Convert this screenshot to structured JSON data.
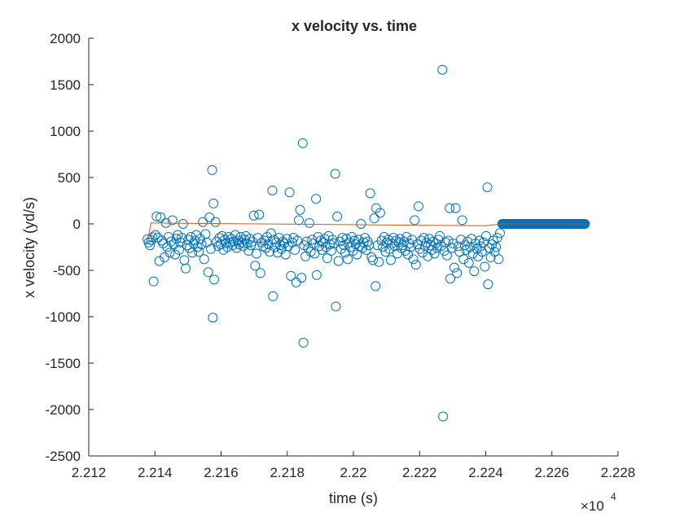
{
  "chart_data": {
    "type": "scatter",
    "title": "x velocity vs. time",
    "xlabel": "time (s)",
    "ylabel": "x velocity (yd/s)",
    "x_exponent_label": "×10",
    "x_exponent_power": "4",
    "xlim": [
      2.212,
      2.228
    ],
    "ylim": [
      -2500,
      2000
    ],
    "x_ticks": [
      2.212,
      2.214,
      2.216,
      2.218,
      2.22,
      2.222,
      2.224,
      2.226,
      2.228
    ],
    "x_tick_labels": [
      "2.212",
      "2.214",
      "2.216",
      "2.218",
      "2.22",
      "2.222",
      "2.224",
      "2.226",
      "2.228"
    ],
    "y_ticks": [
      2000,
      1500,
      1000,
      500,
      0,
      -500,
      -1000,
      -1500,
      -2000,
      -2500
    ],
    "y_tick_labels": [
      "2000",
      "1500",
      "1000",
      "500",
      "0",
      "-500",
      "-1000",
      "-1500",
      "-2000",
      "-2500"
    ],
    "grid": false,
    "marker_color": "#0072BD",
    "line_color": "#D95319",
    "series": [
      {
        "marker": "circle",
        "points": [
          [
            2.21377,
            -165
          ],
          [
            2.21381,
            -200
          ],
          [
            2.21385,
            -230
          ],
          [
            2.21389,
            -175
          ],
          [
            2.21393,
            -145
          ],
          [
            2.21396,
            -620
          ],
          [
            2.21401,
            -120
          ],
          [
            2.21405,
            80
          ],
          [
            2.21409,
            -150
          ],
          [
            2.21413,
            -400
          ],
          [
            2.21417,
            70
          ],
          [
            2.21421,
            -180
          ],
          [
            2.21425,
            -210
          ],
          [
            2.21429,
            -360
          ],
          [
            2.21433,
            10
          ],
          [
            2.21437,
            -250
          ],
          [
            2.21441,
            -140
          ],
          [
            2.21445,
            -310
          ],
          [
            2.21449,
            -190
          ],
          [
            2.21453,
            40
          ],
          [
            2.21457,
            -220
          ],
          [
            2.21461,
            -330
          ],
          [
            2.21465,
            -160
          ],
          [
            2.21469,
            -120
          ],
          [
            2.21473,
            -280
          ],
          [
            2.21477,
            -200
          ],
          [
            2.21481,
            -150
          ],
          [
            2.21485,
            0
          ],
          [
            2.21489,
            -390
          ],
          [
            2.21493,
            -480
          ],
          [
            2.21497,
            -230
          ],
          [
            2.21501,
            -170
          ],
          [
            2.21505,
            -260
          ],
          [
            2.21509,
            -140
          ],
          [
            2.21513,
            -310
          ],
          [
            2.21517,
            -210
          ],
          [
            2.21521,
            -180
          ],
          [
            2.21525,
            -120
          ],
          [
            2.21529,
            -250
          ],
          [
            2.21533,
            -300
          ],
          [
            2.21537,
            -160
          ],
          [
            2.21541,
            -220
          ],
          [
            2.21545,
            20
          ],
          [
            2.21549,
            -380
          ],
          [
            2.21553,
            -110
          ],
          [
            2.21557,
            -200
          ],
          [
            2.21561,
            -520
          ],
          [
            2.21565,
            70
          ],
          [
            2.21569,
            -270
          ],
          [
            2.21573,
            580
          ],
          [
            2.21575,
            -1010
          ],
          [
            2.21577,
            220
          ],
          [
            2.21579,
            -600
          ],
          [
            2.21583,
            20
          ],
          [
            2.21587,
            -190
          ],
          [
            2.21591,
            -240
          ],
          [
            2.21595,
            -150
          ],
          [
            2.21599,
            -220
          ],
          [
            2.21603,
            -130
          ],
          [
            2.21607,
            -280
          ],
          [
            2.21611,
            -170
          ],
          [
            2.21615,
            -210
          ],
          [
            2.21619,
            -250
          ],
          [
            2.21623,
            -140
          ],
          [
            2.21627,
            -200
          ],
          [
            2.21631,
            -160
          ],
          [
            2.21635,
            -230
          ],
          [
            2.21639,
            -190
          ],
          [
            2.21643,
            -120
          ],
          [
            2.21647,
            -260
          ],
          [
            2.21651,
            -180
          ],
          [
            2.21655,
            -220
          ],
          [
            2.21659,
            -140
          ],
          [
            2.21663,
            -200
          ],
          [
            2.21667,
            -240
          ],
          [
            2.21671,
            -170
          ],
          [
            2.21675,
            -130
          ],
          [
            2.21679,
            -210
          ],
          [
            2.21683,
            -290
          ],
          [
            2.21687,
            -160
          ],
          [
            2.21691,
            -230
          ],
          [
            2.21695,
            -190
          ],
          [
            2.21699,
            90
          ],
          [
            2.21703,
            -450
          ],
          [
            2.21707,
            -320
          ],
          [
            2.21711,
            -150
          ],
          [
            2.21715,
            100
          ],
          [
            2.21719,
            -530
          ],
          [
            2.21723,
            -200
          ],
          [
            2.21727,
            -240
          ],
          [
            2.21731,
            -180
          ],
          [
            2.21735,
            -260
          ],
          [
            2.21739,
            -140
          ],
          [
            2.21743,
            -220
          ],
          [
            2.21747,
            -300
          ],
          [
            2.21751,
            -100
          ],
          [
            2.21755,
            360
          ],
          [
            2.21757,
            -780
          ],
          [
            2.21759,
            -170
          ],
          [
            2.21763,
            -250
          ],
          [
            2.21767,
            -200
          ],
          [
            2.21771,
            -310
          ],
          [
            2.21775,
            -150
          ],
          [
            2.21779,
            -230
          ],
          [
            2.21783,
            -270
          ],
          [
            2.21787,
            -190
          ],
          [
            2.21791,
            -210
          ],
          [
            2.21795,
            -330
          ],
          [
            2.21799,
            -160
          ],
          [
            2.21803,
            -240
          ],
          [
            2.21807,
            340
          ],
          [
            2.21811,
            -560
          ],
          [
            2.21815,
            -200
          ],
          [
            2.21819,
            -150
          ],
          [
            2.21823,
            -280
          ],
          [
            2.21827,
            -630
          ],
          [
            2.21831,
            -180
          ],
          [
            2.21835,
            40
          ],
          [
            2.21839,
            150
          ],
          [
            2.21843,
            -580
          ],
          [
            2.21847,
            870
          ],
          [
            2.21849,
            -1280
          ],
          [
            2.21851,
            -230
          ],
          [
            2.21855,
            -350
          ],
          [
            2.21859,
            -190
          ],
          [
            2.21863,
            -260
          ],
          [
            2.21867,
            10
          ],
          [
            2.21871,
            -300
          ],
          [
            2.21875,
            -170
          ],
          [
            2.21879,
            -210
          ],
          [
            2.21883,
            -320
          ],
          [
            2.21887,
            270
          ],
          [
            2.21889,
            -550
          ],
          [
            2.21893,
            -140
          ],
          [
            2.21897,
            -240
          ],
          [
            2.21901,
            -180
          ],
          [
            2.21905,
            -280
          ],
          [
            2.21909,
            -200
          ],
          [
            2.21913,
            -160
          ],
          [
            2.21917,
            -250
          ],
          [
            2.21921,
            -370
          ],
          [
            2.21925,
            -130
          ],
          [
            2.21929,
            -220
          ],
          [
            2.21933,
            -290
          ],
          [
            2.21937,
            -170
          ],
          [
            2.21941,
            -210
          ],
          [
            2.21945,
            540
          ],
          [
            2.21947,
            -890
          ],
          [
            2.21951,
            80
          ],
          [
            2.21955,
            -400
          ],
          [
            2.21959,
            -190
          ],
          [
            2.21963,
            -270
          ],
          [
            2.21967,
            -150
          ],
          [
            2.21971,
            -230
          ],
          [
            2.21975,
            -310
          ],
          [
            2.21979,
            -160
          ],
          [
            2.21983,
            -380
          ],
          [
            2.21987,
            -200
          ],
          [
            2.21991,
            -250
          ],
          [
            2.21995,
            -140
          ],
          [
            2.21999,
            -290
          ],
          [
            2.22003,
            -180
          ],
          [
            2.22007,
            -220
          ],
          [
            2.22011,
            -330
          ],
          [
            2.22015,
            -170
          ],
          [
            2.22019,
            -240
          ],
          [
            2.22023,
            0
          ],
          [
            2.22027,
            -260
          ],
          [
            2.22031,
            -200
          ],
          [
            2.22035,
            -150
          ],
          [
            2.22039,
            -280
          ],
          [
            2.22043,
            -190
          ],
          [
            2.22047,
            -230
          ],
          [
            2.22051,
            330
          ],
          [
            2.22055,
            -360
          ],
          [
            2.22059,
            -390
          ],
          [
            2.22063,
            60
          ],
          [
            2.22067,
            -670
          ],
          [
            2.22069,
            170
          ],
          [
            2.22073,
            -230
          ],
          [
            2.22077,
            -410
          ],
          [
            2.22081,
            120
          ],
          [
            2.22085,
            -180
          ],
          [
            2.22089,
            -250
          ],
          [
            2.22093,
            -140
          ],
          [
            2.22097,
            -300
          ],
          [
            2.22101,
            -200
          ],
          [
            2.22105,
            -170
          ],
          [
            2.22109,
            -270
          ],
          [
            2.22113,
            -390
          ],
          [
            2.22117,
            -210
          ],
          [
            2.22121,
            -150
          ],
          [
            2.22125,
            -240
          ],
          [
            2.22129,
            -180
          ],
          [
            2.22133,
            -320
          ],
          [
            2.22137,
            -200
          ],
          [
            2.22141,
            -160
          ],
          [
            2.22145,
            -260
          ],
          [
            2.22149,
            -230
          ],
          [
            2.22153,
            -190
          ],
          [
            2.22157,
            -290
          ],
          [
            2.22161,
            -140
          ],
          [
            2.22165,
            -330
          ],
          [
            2.22169,
            -210
          ],
          [
            2.22173,
            -250
          ],
          [
            2.22177,
            -170
          ],
          [
            2.22181,
            -380
          ],
          [
            2.22185,
            40
          ],
          [
            2.22189,
            -440
          ],
          [
            2.22193,
            -220
          ],
          [
            2.22197,
            190
          ],
          [
            2.22201,
            -270
          ],
          [
            2.22205,
            -180
          ],
          [
            2.22209,
            -310
          ],
          [
            2.22213,
            -150
          ],
          [
            2.22217,
            -240
          ],
          [
            2.22221,
            -200
          ],
          [
            2.22225,
            -350
          ],
          [
            2.22229,
            -160
          ],
          [
            2.22233,
            -230
          ],
          [
            2.22237,
            -280
          ],
          [
            2.22241,
            -190
          ],
          [
            2.22245,
            -320
          ],
          [
            2.22249,
            -210
          ],
          [
            2.22253,
            -260
          ],
          [
            2.22257,
            -170
          ],
          [
            2.22261,
            -130
          ],
          [
            2.22265,
            -240
          ],
          [
            2.22269,
            1660
          ],
          [
            2.22271,
            -2075
          ],
          [
            2.22275,
            -290
          ],
          [
            2.22279,
            -200
          ],
          [
            2.22283,
            -340
          ],
          [
            2.22287,
            -180
          ],
          [
            2.22291,
            170
          ],
          [
            2.22293,
            -590
          ],
          [
            2.22297,
            -260
          ],
          [
            2.22301,
            -210
          ],
          [
            2.22305,
            -470
          ],
          [
            2.22309,
            170
          ],
          [
            2.22313,
            -530
          ],
          [
            2.22317,
            -240
          ],
          [
            2.22321,
            -300
          ],
          [
            2.22325,
            -170
          ],
          [
            2.22329,
            40
          ],
          [
            2.22333,
            -380
          ],
          [
            2.22337,
            -230
          ],
          [
            2.22341,
            -280
          ],
          [
            2.22345,
            -190
          ],
          [
            2.22349,
            -420
          ],
          [
            2.22353,
            -250
          ],
          [
            2.22357,
            -160
          ],
          [
            2.22361,
            -320
          ],
          [
            2.22365,
            -510
          ],
          [
            2.22369,
            -210
          ],
          [
            2.22373,
            -270
          ],
          [
            2.22377,
            -350
          ],
          [
            2.22381,
            -180
          ],
          [
            2.22385,
            -240
          ],
          [
            2.22389,
            -300
          ],
          [
            2.22393,
            -200
          ],
          [
            2.22397,
            -460
          ],
          [
            2.22401,
            -130
          ],
          [
            2.22405,
            395
          ],
          [
            2.22407,
            -650
          ],
          [
            2.22411,
            -260
          ],
          [
            2.22415,
            -360
          ],
          [
            2.22419,
            -220
          ],
          [
            2.22423,
            -180
          ],
          [
            2.22427,
            -300
          ],
          [
            2.22431,
            -250
          ],
          [
            2.22435,
            -150
          ],
          [
            2.22439,
            -380
          ],
          [
            2.22443,
            -100
          ]
        ]
      },
      {
        "marker": "circle",
        "note_range": "dense run of points at 0 from x = 2.2245 to 2.227",
        "points_zero_range": [
          2.2245,
          2.227
        ],
        "points_zero_step": 2e-05
      },
      {
        "marker": "line",
        "points": [
          [
            2.2138,
            -150
          ],
          [
            2.21388,
            10
          ],
          [
            2.21394,
            10
          ],
          [
            2.224,
            -20
          ],
          [
            2.2245,
            0
          ],
          [
            2.227,
            0
          ]
        ]
      }
    ]
  }
}
